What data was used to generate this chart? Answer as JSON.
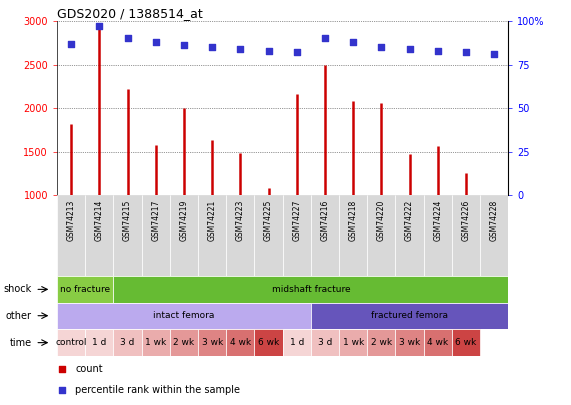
{
  "title": "GDS2020 / 1388514_at",
  "samples": [
    "GSM74213",
    "GSM74214",
    "GSM74215",
    "GSM74217",
    "GSM74219",
    "GSM74221",
    "GSM74223",
    "GSM74225",
    "GSM74227",
    "GSM74216",
    "GSM74218",
    "GSM74220",
    "GSM74222",
    "GSM74224",
    "GSM74226",
    "GSM74228"
  ],
  "counts": [
    1820,
    2950,
    2220,
    1580,
    2000,
    1630,
    1480,
    1080,
    2160,
    2500,
    2080,
    2060,
    1470,
    1560,
    1260,
    1000
  ],
  "percentiles": [
    87,
    97,
    90,
    88,
    86,
    85,
    84,
    83,
    82,
    90,
    88,
    85,
    84,
    83,
    82,
    81
  ],
  "bar_color": "#cc0000",
  "dot_color": "#3333cc",
  "ylim_left": [
    1000,
    3000
  ],
  "ylim_right": [
    0,
    100
  ],
  "yticks_left": [
    1000,
    1500,
    2000,
    2500,
    3000
  ],
  "yticks_right": [
    0,
    25,
    50,
    75,
    100
  ],
  "shock_segments": [
    {
      "text": "no fracture",
      "start": 0,
      "end": 2,
      "color": "#88cc44"
    },
    {
      "text": "midshaft fracture",
      "start": 2,
      "end": 16,
      "color": "#66bb33"
    }
  ],
  "other_segments": [
    {
      "text": "intact femora",
      "start": 0,
      "end": 9,
      "color": "#bbaaee"
    },
    {
      "text": "fractured femora",
      "start": 9,
      "end": 16,
      "color": "#6655bb"
    }
  ],
  "time_cells": [
    {
      "text": "control",
      "start": 0,
      "end": 1,
      "color": "#f5d5d5"
    },
    {
      "text": "1 d",
      "start": 1,
      "end": 2,
      "color": "#f5d5d5"
    },
    {
      "text": "3 d",
      "start": 2,
      "end": 3,
      "color": "#f0c0c0"
    },
    {
      "text": "1 wk",
      "start": 3,
      "end": 4,
      "color": "#eaacac"
    },
    {
      "text": "2 wk",
      "start": 4,
      "end": 5,
      "color": "#e49898"
    },
    {
      "text": "3 wk",
      "start": 5,
      "end": 6,
      "color": "#de8484"
    },
    {
      "text": "4 wk",
      "start": 6,
      "end": 7,
      "color": "#d87070"
    },
    {
      "text": "6 wk",
      "start": 7,
      "end": 8,
      "color": "#cc4444"
    },
    {
      "text": "1 d",
      "start": 8,
      "end": 9,
      "color": "#f5d5d5"
    },
    {
      "text": "3 d",
      "start": 9,
      "end": 10,
      "color": "#f0c0c0"
    },
    {
      "text": "1 wk",
      "start": 10,
      "end": 11,
      "color": "#eaacac"
    },
    {
      "text": "2 wk",
      "start": 11,
      "end": 12,
      "color": "#e49898"
    },
    {
      "text": "3 wk",
      "start": 12,
      "end": 13,
      "color": "#de8484"
    },
    {
      "text": "4 wk",
      "start": 13,
      "end": 14,
      "color": "#d87070"
    },
    {
      "text": "6 wk",
      "start": 14,
      "end": 15,
      "color": "#cc4444"
    }
  ],
  "row_labels": [
    "shock",
    "other",
    "time"
  ],
  "xlabel_bg": "#d8d8d8",
  "plot_bg": "#ffffff",
  "legend_items": [
    {
      "color": "#cc0000",
      "label": "count"
    },
    {
      "color": "#3333cc",
      "label": "percentile rank within the sample"
    }
  ]
}
